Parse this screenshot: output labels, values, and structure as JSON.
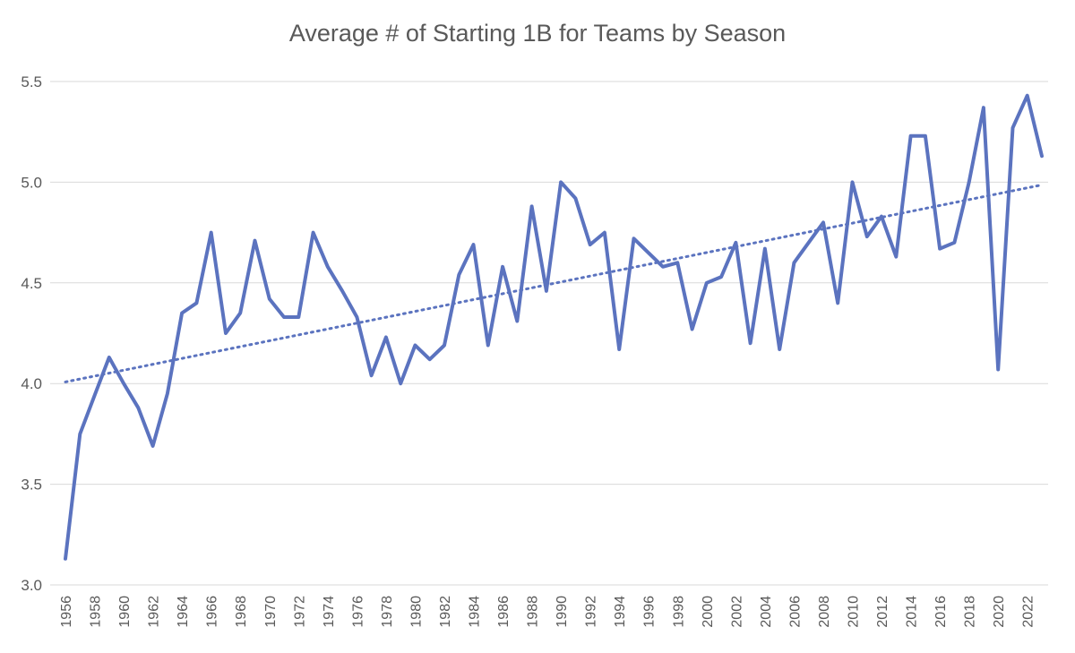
{
  "chart_data": {
    "type": "line",
    "title": "Average # of Starting 1B for Teams by Season",
    "xlabel": "",
    "ylabel": "",
    "ylim": [
      3.0,
      5.5
    ],
    "y_ticks": [
      "3.0",
      "3.5",
      "4.0",
      "4.5",
      "5.0",
      "5.5"
    ],
    "x_ticks": [
      "1956",
      "1958",
      "1960",
      "1962",
      "1964",
      "1966",
      "1968",
      "1970",
      "1972",
      "1974",
      "1976",
      "1978",
      "1980",
      "1982",
      "1984",
      "1986",
      "1988",
      "1990",
      "1992",
      "1994",
      "1996",
      "1998",
      "2000",
      "2002",
      "2004",
      "2006",
      "2008",
      "2010",
      "2012",
      "2014",
      "2016",
      "2018",
      "2020",
      "2022"
    ],
    "grid": "horizontal",
    "legend": "none",
    "x": [
      1956,
      1957,
      1958,
      1959,
      1960,
      1961,
      1962,
      1963,
      1964,
      1965,
      1966,
      1967,
      1968,
      1969,
      1970,
      1971,
      1972,
      1973,
      1974,
      1975,
      1976,
      1977,
      1978,
      1979,
      1980,
      1981,
      1982,
      1983,
      1984,
      1985,
      1986,
      1987,
      1988,
      1989,
      1990,
      1991,
      1992,
      1993,
      1994,
      1995,
      1996,
      1997,
      1998,
      1999,
      2000,
      2001,
      2002,
      2003,
      2004,
      2005,
      2006,
      2007,
      2008,
      2009,
      2010,
      2011,
      2012,
      2013,
      2014,
      2015,
      2016,
      2017,
      2018,
      2019,
      2020,
      2021,
      2022,
      2023
    ],
    "series": [
      {
        "values": [
          3.13,
          3.75,
          3.94,
          4.13,
          4.0,
          3.88,
          3.69,
          3.95,
          4.35,
          4.4,
          4.75,
          4.25,
          4.35,
          4.71,
          4.42,
          4.33,
          4.33,
          4.75,
          4.58,
          4.46,
          4.33,
          4.04,
          4.23,
          4.0,
          4.19,
          4.12,
          4.19,
          4.54,
          4.69,
          4.19,
          4.58,
          4.31,
          4.88,
          4.46,
          5.0,
          4.92,
          4.69,
          4.75,
          4.17,
          4.72,
          4.65,
          4.58,
          4.6,
          4.27,
          4.5,
          4.53,
          4.7,
          4.2,
          4.67,
          4.17,
          4.6,
          4.7,
          4.8,
          4.4,
          5.0,
          4.73,
          4.83,
          4.63,
          5.23,
          5.23,
          4.67,
          4.7,
          5.0,
          5.37,
          4.07,
          5.27,
          5.43,
          5.13
        ],
        "color": "#5b73bf",
        "style": "solid"
      }
    ],
    "trendline": {
      "type": "linear",
      "color": "#5b73bf",
      "style": "dotted"
    },
    "colors": {
      "line": "#5b73bf",
      "grid": "#d9d9d9",
      "text": "#595959"
    }
  }
}
